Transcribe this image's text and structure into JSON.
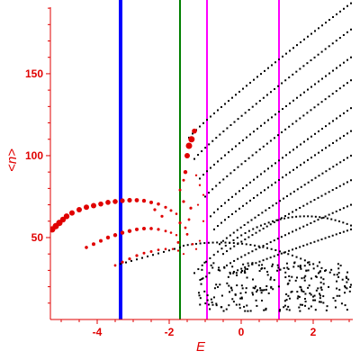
{
  "chart_data": {
    "type": "scatter",
    "title": "",
    "xlabel": "E",
    "ylabel": "<n>",
    "xlim": [
      -5.3,
      3.1
    ],
    "ylim": [
      0,
      195
    ],
    "x_ticks": [
      -4,
      -2,
      0,
      2
    ],
    "y_ticks": [
      50,
      100,
      150
    ],
    "x_tick_labels": [
      "-4",
      "-2",
      "0",
      "2"
    ],
    "y_tick_labels": [
      "50",
      "100",
      "150"
    ],
    "grid": false,
    "colors": {
      "axis": "#e00000",
      "highlight_points": "#e00000",
      "spectrum_points": "#000000",
      "line_1": "#0000ff",
      "line_2": "#008000",
      "line_3": "#ff00ff",
      "line_4": "#ff00ff"
    },
    "vertical_lines": [
      {
        "x": -3.35,
        "color": "#0000ff",
        "width": 4
      },
      {
        "x": -1.7,
        "color": "#008000",
        "width": 2
      },
      {
        "x": -0.95,
        "color": "#ff00ff",
        "width": 2
      },
      {
        "x": 1.05,
        "color": "#ff00ff",
        "width": 2
      }
    ],
    "series": [
      {
        "color": "#e00000",
        "kind": "highlighted branches (marker size ~ weight)",
        "points": [
          [
            -5.25,
            55,
            3.5
          ],
          [
            -5.15,
            57,
            3.5
          ],
          [
            -5.05,
            59,
            3.5
          ],
          [
            -4.95,
            61,
            3.2
          ],
          [
            -4.85,
            63,
            3.2
          ],
          [
            -4.7,
            65,
            3
          ],
          [
            -4.5,
            67,
            3
          ],
          [
            -4.3,
            68.5,
            3
          ],
          [
            -4.1,
            69.5,
            3
          ],
          [
            -3.9,
            70.5,
            2.8
          ],
          [
            -3.7,
            71.5,
            2.8
          ],
          [
            -3.5,
            72,
            2.8
          ],
          [
            -3.3,
            72.5,
            2.6
          ],
          [
            -3.1,
            72.8,
            2.6
          ],
          [
            -2.9,
            72.8,
            2.4
          ],
          [
            -2.7,
            72.5,
            2.2
          ],
          [
            -2.5,
            71.5,
            2
          ],
          [
            -2.3,
            70.5,
            1.8
          ],
          [
            -2.1,
            68.5,
            1.6
          ],
          [
            -1.95,
            66.5,
            1.5
          ],
          [
            -1.8,
            64.5,
            1.3
          ],
          [
            -4.3,
            44,
            1.8
          ],
          [
            -4.1,
            46,
            2
          ],
          [
            -3.9,
            48,
            2
          ],
          [
            -3.7,
            50,
            2.2
          ],
          [
            -3.5,
            51.5,
            2.2
          ],
          [
            -3.3,
            53,
            2.2
          ],
          [
            -3.1,
            54,
            2.2
          ],
          [
            -2.9,
            55,
            2
          ],
          [
            -2.7,
            55.5,
            2
          ],
          [
            -2.5,
            55.5,
            1.8
          ],
          [
            -2.3,
            55,
            1.6
          ],
          [
            -2.1,
            54,
            1.4
          ],
          [
            -1.95,
            53,
            1.3
          ],
          [
            -1.8,
            51.5,
            1.2
          ],
          [
            -3.5,
            33,
            1.4
          ],
          [
            -3.3,
            35,
            1.6
          ],
          [
            -3.1,
            37,
            1.6
          ],
          [
            -2.9,
            39,
            1.6
          ],
          [
            -2.7,
            40.5,
            1.5
          ],
          [
            -2.5,
            41.5,
            1.5
          ],
          [
            -2.3,
            42.5,
            1.4
          ],
          [
            -2.1,
            43,
            1.3
          ],
          [
            -1.9,
            43,
            1.2
          ],
          [
            -1.75,
            42,
            1.2
          ],
          [
            -1.6,
            40,
            1.1
          ],
          [
            -1.55,
            90,
            2.2
          ],
          [
            -1.5,
            100,
            3
          ],
          [
            -1.45,
            106,
            3.5
          ],
          [
            -1.38,
            110,
            3.5
          ],
          [
            -1.3,
            115,
            2.8
          ],
          [
            -1.6,
            85,
            1.5
          ],
          [
            -1.7,
            79,
            1.5
          ],
          [
            -1.6,
            72,
            1.6
          ],
          [
            -1.4,
            68,
            1.6
          ],
          [
            -1.25,
            88,
            1.2
          ],
          [
            -1.15,
            82,
            1.2
          ],
          [
            -1.05,
            76,
            1.1
          ],
          [
            -1.7,
            59,
            1.6
          ],
          [
            -1.55,
            56,
            1.4
          ],
          [
            -1.45,
            61,
            1.4
          ],
          [
            -1.75,
            47,
            1.5
          ],
          [
            -1.5,
            52,
            1.4
          ],
          [
            -1.35,
            46,
            1.3
          ],
          [
            -2.4,
            67,
            1.6
          ],
          [
            -2.2,
            63,
            1.6
          ],
          [
            -1.2,
            70,
            1.1
          ],
          [
            -1.05,
            60,
            1.1
          ],
          [
            -1.25,
            43,
            1.1
          ],
          [
            -1.15,
            48,
            1.1
          ]
        ]
      },
      {
        "color": "#000000",
        "kind": "spectrum points",
        "branches": [
          {
            "E0": -1.45,
            "E1": 3.05,
            "n0": 111,
            "n1": 193
          },
          {
            "E0": -1.3,
            "E1": 3.05,
            "n0": 98,
            "n1": 177
          },
          {
            "E0": -1.15,
            "E1": 3.05,
            "n0": 86,
            "n1": 160
          },
          {
            "E0": -1.0,
            "E1": 3.05,
            "n0": 75,
            "n1": 146
          },
          {
            "E0": -0.85,
            "E1": 3.05,
            "n0": 63,
            "n1": 129
          },
          {
            "E0": -0.75,
            "E1": 3.05,
            "n0": 55,
            "n1": 115
          },
          {
            "E0": -0.6,
            "E1": 3.05,
            "n0": 46,
            "n1": 100
          },
          {
            "E0": -0.5,
            "E1": 3.05,
            "n0": 40,
            "n1": 85
          },
          {
            "E0": -0.4,
            "E1": 3.05,
            "n0": 33,
            "n1": 70
          },
          {
            "E0": -0.3,
            "E1": 3.05,
            "n0": 28,
            "n1": 55
          }
        ],
        "arches": [
          {
            "E0": -1.3,
            "E1": 3.05,
            "peak_E": 1.8,
            "peak_n": 63
          },
          {
            "E0": -1.6,
            "E1": 3.05,
            "peak_E": -0.6,
            "peak_n": 47
          }
        ],
        "bottom_cloud": {
          "E0": -1.2,
          "E1": 3.05,
          "n0": 5,
          "n1": 35
        },
        "low_branch": {
          "E0": -3.5,
          "E1": -1.7,
          "n0": 33,
          "n1": 44
        }
      }
    ]
  }
}
